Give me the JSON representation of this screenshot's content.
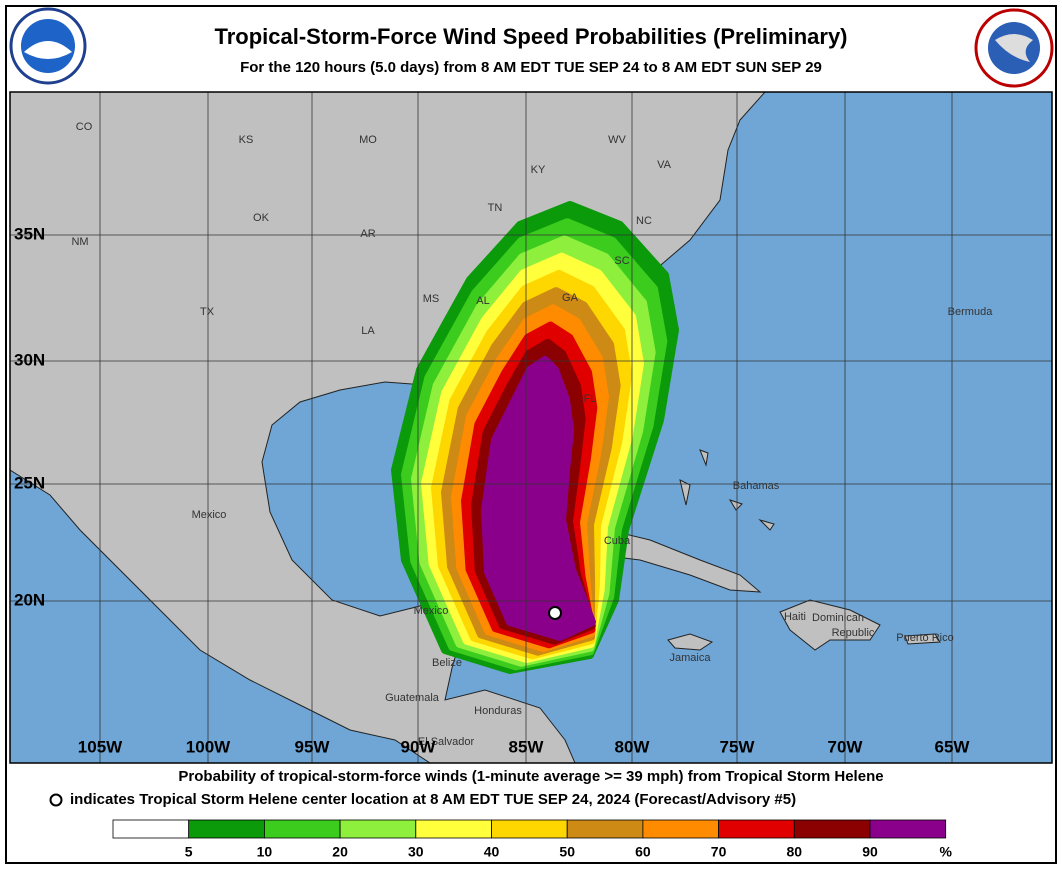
{
  "header": {
    "title": "Tropical-Storm-Force Wind Speed Probabilities (Preliminary)",
    "subtitle": "For the 120 hours (5.0 days) from 8 AM EDT TUE SEP 24 to 8 AM EDT SUN SEP 29"
  },
  "map": {
    "lat_labels": [
      "35N",
      "30N",
      "25N",
      "20N"
    ],
    "lon_labels": [
      "105W",
      "100W",
      "95W",
      "90W",
      "85W",
      "80W",
      "75W",
      "70W",
      "65W"
    ],
    "places": [
      "CO",
      "KS",
      "MO",
      "WV",
      "VA",
      "KY",
      "TN",
      "NC",
      "OK",
      "AR",
      "NM",
      "SC",
      "GA",
      "AL",
      "MS",
      "TX",
      "LA",
      "FL",
      "Bermuda",
      "Bahamas",
      "Mexico",
      "Cuba",
      "Mexico",
      "Haiti",
      "Dominican",
      "Republic",
      "Puerto Rico",
      "Jamaica",
      "Belize",
      "Guatemala",
      "Honduras",
      "El Salvador"
    ]
  },
  "footer": {
    "line1": "Probability of tropical-storm-force winds (1-minute average >= 39 mph) from Tropical Storm Helene",
    "line2": "indicates Tropical Storm Helene center location at 8 AM EDT TUE SEP 24, 2024 (Forecast/Advisory #5)"
  },
  "legend": {
    "labels": [
      "5",
      "10",
      "20",
      "30",
      "40",
      "50",
      "60",
      "70",
      "80",
      "90",
      "%"
    ],
    "colors": [
      "#ffffff",
      "#0a9a0a",
      "#3ccc1e",
      "#8ef03c",
      "#ffff3c",
      "#ffd700",
      "#cd8a14",
      "#ff8c00",
      "#e10000",
      "#8b0000",
      "#8b008b"
    ]
  }
}
